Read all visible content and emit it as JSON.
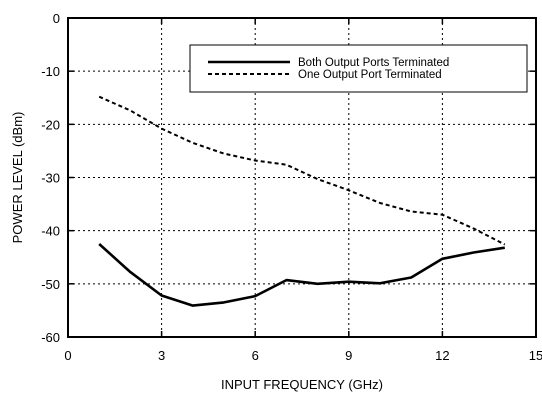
{
  "chart_data": {
    "type": "line",
    "title": "",
    "xlabel": "INPUT FREQUENCY (GHz)",
    "ylabel": "POWER LEVEL (dBm)",
    "xlim": [
      0,
      15
    ],
    "ylim": [
      -60,
      0
    ],
    "xticks": [
      0,
      3,
      6,
      9,
      12,
      15
    ],
    "yticks": [
      0,
      -10,
      -20,
      -30,
      -40,
      -50,
      -60
    ],
    "grid": true,
    "legend_position": "top-right",
    "series": [
      {
        "name": "Both Output Ports Terminated",
        "style": "solid",
        "color": "#000000",
        "x": [
          1,
          2,
          3,
          4,
          5,
          6,
          7,
          8,
          9,
          10,
          11,
          12,
          13,
          14
        ],
        "y": [
          -42.5,
          -47.8,
          -52.2,
          -54.1,
          -53.5,
          -52.3,
          -49.3,
          -50.0,
          -49.6,
          -49.9,
          -48.8,
          -45.3,
          -44.1,
          -43.2
        ]
      },
      {
        "name": "One Output Port Terminated",
        "style": "dashed",
        "color": "#000000",
        "x": [
          1,
          2,
          3,
          4,
          5,
          6,
          7,
          8,
          9,
          10,
          11,
          12,
          13,
          14
        ],
        "y": [
          -14.8,
          -17.4,
          -20.8,
          -23.5,
          -25.5,
          -26.8,
          -27.6,
          -30.3,
          -32.4,
          -34.8,
          -36.4,
          -37.0,
          -39.6,
          -42.6
        ]
      }
    ]
  }
}
